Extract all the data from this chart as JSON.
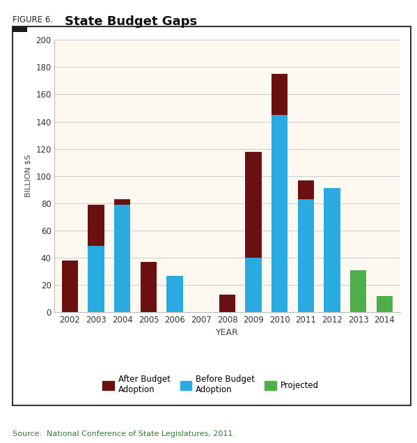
{
  "years": [
    "2002",
    "2003",
    "2004",
    "2005",
    "2006",
    "2007",
    "2008",
    "2009",
    "2010",
    "2011",
    "2012",
    "2013",
    "2014"
  ],
  "before_budget": [
    0,
    49,
    79,
    0,
    27,
    0,
    0,
    40,
    145,
    83,
    91,
    0,
    0
  ],
  "after_budget_extra": [
    38,
    30,
    4,
    37,
    0,
    0,
    13,
    78,
    30,
    14,
    0,
    0,
    0
  ],
  "projected": [
    0,
    0,
    0,
    0,
    0,
    0,
    0,
    0,
    0,
    0,
    0,
    31,
    12
  ],
  "color_before": "#29aae1",
  "color_after": "#6b1010",
  "color_projected": "#4daf4a",
  "title_prefix": "FIGURE 6.",
  "title_main": "State Budget Gaps",
  "xlabel": "YEAR",
  "ylabel": "BILLION $S",
  "ylim": [
    0,
    200
  ],
  "yticks": [
    0,
    20,
    40,
    60,
    80,
    100,
    120,
    140,
    160,
    180,
    200
  ],
  "legend_after": "After Budget\nAdoption",
  "legend_before": "Before Budget\nAdoption",
  "legend_projected": "Projected",
  "source_text": "Source:  National Conference of State Legislatures, 2011.",
  "plot_bg": "#fdf8f0",
  "outer_bg": "#ffffff",
  "frame_bg": "#ffffff"
}
